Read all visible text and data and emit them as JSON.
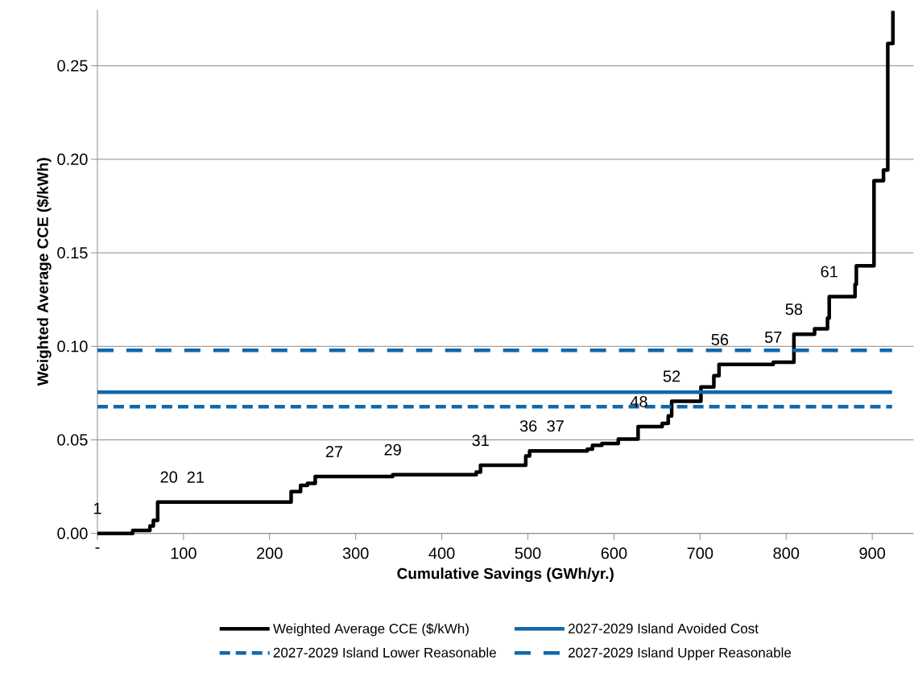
{
  "chart_data": {
    "type": "step",
    "xlabel": "Cumulative Savings (GWh/yr.)",
    "ylabel": "Weighted Average CCE ($/kWh)",
    "xlim": [
      0,
      948
    ],
    "ylim": [
      0,
      0.28
    ],
    "xticks": [
      {
        "value": 0,
        "label": "-"
      },
      100,
      200,
      300,
      400,
      500,
      600,
      700,
      800,
      900
    ],
    "yticks": [
      {
        "value": 0,
        "label": "0.00"
      },
      {
        "value": 0.05,
        "label": "0.05"
      },
      {
        "value": 0.1,
        "label": "0.10"
      },
      {
        "value": 0.15,
        "label": "0.15"
      },
      {
        "value": 0.2,
        "label": "0.20"
      },
      {
        "value": 0.25,
        "label": "0.25"
      }
    ],
    "grid": "y",
    "legend": "bottom",
    "series": [
      {
        "name": "Weighted Average CCE ($/kWh)",
        "color": "#000000",
        "line_style": "solid",
        "x": [
          0,
          41,
          61,
          65,
          70,
          225,
          236,
          244,
          253,
          343,
          440,
          445,
          497.5,
          502,
          569,
          575,
          586,
          605,
          628,
          656,
          663,
          667,
          701,
          716,
          722,
          785,
          809,
          833,
          848,
          850,
          880,
          881.5,
          902,
          913,
          918,
          924
        ],
        "values": [
          0,
          0.0016,
          0.004,
          0.007,
          0.0168,
          0.0223,
          0.0257,
          0.0268,
          0.0304,
          0.0314,
          0.0328,
          0.0364,
          0.0414,
          0.0441,
          0.045,
          0.0471,
          0.0481,
          0.0504,
          0.0571,
          0.0588,
          0.0628,
          0.0707,
          0.0783,
          0.0843,
          0.0903,
          0.0915,
          0.1065,
          0.1094,
          0.1151,
          0.1266,
          0.1331,
          0.143,
          0.1886,
          0.1943,
          0.2619,
          0.2793
        ]
      },
      {
        "name": "2027-2029 Island Avoided Cost",
        "type": "line",
        "color": "#1068ac",
        "line_style": "solid",
        "x": [
          0,
          923
        ],
        "values": [
          0.0755,
          0.0755
        ]
      },
      {
        "name": "2027-2029 Island Lower Reasonable",
        "type": "line",
        "color": "#1068ac",
        "line_style": "dotted",
        "x": [
          0,
          923
        ],
        "values": [
          0.0677,
          0.0677
        ]
      },
      {
        "name": "2027-2029 Island Upper Reasonable",
        "type": "line",
        "color": "#1068ac",
        "line_style": "dashed",
        "x": [
          0,
          923
        ],
        "values": [
          0.0979,
          0.0979
        ]
      }
    ],
    "annotations": [
      {
        "text": "1",
        "x": 0,
        "y": 0
      },
      {
        "text": "20",
        "x": 83,
        "y": 0.0168
      },
      {
        "text": "21",
        "x": 114,
        "y": 0.0168
      },
      {
        "text": "27",
        "x": 275,
        "y": 0.0304
      },
      {
        "text": "29",
        "x": 343,
        "y": 0.0314
      },
      {
        "text": "31",
        "x": 445,
        "y": 0.0364
      },
      {
        "text": "36",
        "x": 500.6,
        "y": 0.0441
      },
      {
        "text": "37",
        "x": 532,
        "y": 0.0441
      },
      {
        "text": "48",
        "x": 629,
        "y": 0.0571
      },
      {
        "text": "52",
        "x": 667,
        "y": 0.0707
      },
      {
        "text": "56",
        "x": 723,
        "y": 0.0903
      },
      {
        "text": "57",
        "x": 785,
        "y": 0.0915
      },
      {
        "text": "58",
        "x": 809,
        "y": 0.1065
      },
      {
        "text": "61",
        "x": 850,
        "y": 0.1266
      }
    ]
  }
}
